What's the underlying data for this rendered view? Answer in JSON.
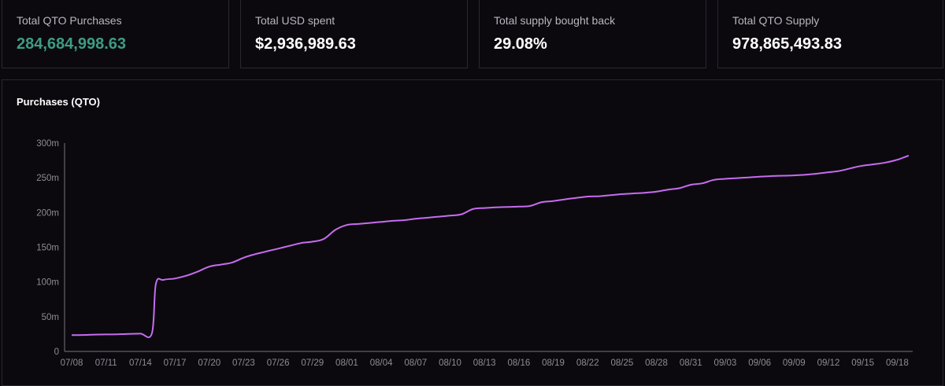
{
  "stats": [
    {
      "label": "Total QTO Purchases",
      "value": "284,684,998.63"
    },
    {
      "label": "Total USD spent",
      "value": "$2,936,989.63"
    },
    {
      "label": "Total supply bought back",
      "value": "29.08%"
    },
    {
      "label": "Total QTO Supply",
      "value": "978,865,493.83"
    }
  ],
  "colors": {
    "line": "#c76cf0",
    "accent": "#3f9b84",
    "background": "#0b090e",
    "border": "#2a282e",
    "axis": "#77757b",
    "tick_text": "#8e8c92"
  },
  "chart_data": {
    "type": "line",
    "title": "Purchases (QTO)",
    "xlabel": "",
    "ylabel": "",
    "ylim": [
      0,
      300000000
    ],
    "xlim": [
      "07/08",
      "09/19"
    ],
    "grid": false,
    "legend": "none",
    "y_ticks": [
      {
        "value": 0,
        "label": "0"
      },
      {
        "value": 50000000,
        "label": "50m"
      },
      {
        "value": 100000000,
        "label": "100m"
      },
      {
        "value": 150000000,
        "label": "150m"
      },
      {
        "value": 200000000,
        "label": "200m"
      },
      {
        "value": 250000000,
        "label": "250m"
      },
      {
        "value": 300000000,
        "label": "300m"
      }
    ],
    "x_ticks": [
      "07/08",
      "07/11",
      "07/14",
      "07/17",
      "07/20",
      "07/23",
      "07/26",
      "07/29",
      "08/01",
      "08/04",
      "08/07",
      "08/10",
      "08/13",
      "08/16",
      "08/19",
      "08/22",
      "08/25",
      "08/28",
      "08/31",
      "09/03",
      "09/06",
      "09/09",
      "09/12",
      "09/15",
      "09/18"
    ],
    "series": [
      {
        "x": [
          "07/08",
          "07/09",
          "07/10",
          "07/11",
          "07/12",
          "07/13",
          "07/14",
          "07/15",
          "07/15",
          "07/16",
          "07/17",
          "07/18",
          "07/19",
          "07/20",
          "07/21",
          "07/22",
          "07/23",
          "07/24",
          "07/25",
          "07/26",
          "07/27",
          "07/28",
          "07/29",
          "07/30",
          "07/31",
          "08/01",
          "08/02",
          "08/03",
          "08/04",
          "08/05",
          "08/06",
          "08/07",
          "08/08",
          "08/09",
          "08/10",
          "08/11",
          "08/12",
          "08/13",
          "08/14",
          "08/15",
          "08/16",
          "08/17",
          "08/18",
          "08/19",
          "08/20",
          "08/21",
          "08/22",
          "08/23",
          "08/24",
          "08/25",
          "08/26",
          "08/27",
          "08/28",
          "08/29",
          "08/30",
          "08/31",
          "09/01",
          "09/02",
          "09/03",
          "09/04",
          "09/05",
          "09/06",
          "09/07",
          "09/08",
          "09/09",
          "09/10",
          "09/11",
          "09/12",
          "09/13",
          "09/14",
          "09/15",
          "09/16",
          "09/17",
          "09/18",
          "09/19"
        ],
        "values": [
          23500000,
          23700000,
          24200000,
          24400000,
          24600000,
          25300000,
          25600000,
          26000000,
          97000000,
          103000000,
          105000000,
          109000000,
          115000000,
          122000000,
          125000000,
          128000000,
          135000000,
          140000000,
          144000000,
          148000000,
          152000000,
          156000000,
          158000000,
          162000000,
          175000000,
          182000000,
          183500000,
          185000000,
          186500000,
          188000000,
          189000000,
          191000000,
          192500000,
          194000000,
          195500000,
          197500000,
          205000000,
          206500000,
          207500000,
          208000000,
          208500000,
          209500000,
          215000000,
          216500000,
          219000000,
          221000000,
          223000000,
          223500000,
          225000000,
          226500000,
          227500000,
          228500000,
          230000000,
          233000000,
          235000000,
          240000000,
          242000000,
          247000000,
          248500000,
          249500000,
          250500000,
          251500000,
          252500000,
          253000000,
          253500000,
          254500000,
          256000000,
          258000000,
          260000000,
          264000000,
          267500000,
          269500000,
          272000000,
          276000000,
          282000000
        ]
      }
    ]
  }
}
